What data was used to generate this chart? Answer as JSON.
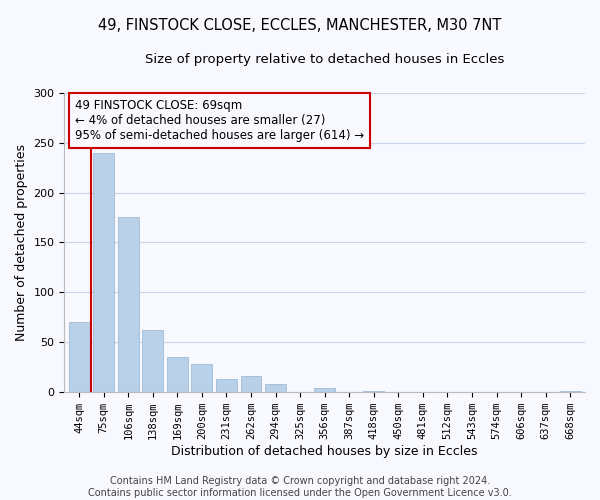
{
  "title": "49, FINSTOCK CLOSE, ECCLES, MANCHESTER, M30 7NT",
  "subtitle": "Size of property relative to detached houses in Eccles",
  "xlabel": "Distribution of detached houses by size in Eccles",
  "ylabel": "Number of detached properties",
  "bar_labels": [
    "44sqm",
    "75sqm",
    "106sqm",
    "138sqm",
    "169sqm",
    "200sqm",
    "231sqm",
    "262sqm",
    "294sqm",
    "325sqm",
    "356sqm",
    "387sqm",
    "418sqm",
    "450sqm",
    "481sqm",
    "512sqm",
    "543sqm",
    "574sqm",
    "606sqm",
    "637sqm",
    "668sqm"
  ],
  "bar_values": [
    70,
    240,
    175,
    62,
    35,
    28,
    13,
    16,
    8,
    0,
    4,
    0,
    1,
    0,
    0,
    0,
    0,
    0,
    0,
    0,
    1
  ],
  "bar_color": "#b8d0e8",
  "bar_edge_color": "#a0bcd8",
  "vline_x": 0.5,
  "vline_color": "#cc0000",
  "annotation_box_text": "49 FINSTOCK CLOSE: 69sqm\n← 4% of detached houses are smaller (27)\n95% of semi-detached houses are larger (614) →",
  "ylim": [
    0,
    300
  ],
  "yticks": [
    0,
    50,
    100,
    150,
    200,
    250,
    300
  ],
  "footer_line1": "Contains HM Land Registry data © Crown copyright and database right 2024.",
  "footer_line2": "Contains public sector information licensed under the Open Government Licence v3.0.",
  "bg_color": "#f8f8ff",
  "grid_color": "#c8d4e8",
  "box_edge_color": "#cc0000",
  "title_fontsize": 10.5,
  "subtitle_fontsize": 9.5,
  "axis_label_fontsize": 9,
  "tick_fontsize": 7.5,
  "annotation_fontsize": 8.5,
  "footer_fontsize": 7
}
